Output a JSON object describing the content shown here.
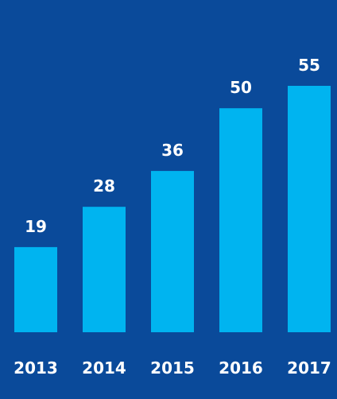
{
  "colors": {
    "background": "#0a4a9a",
    "bar": "#00b4f0",
    "text": "#ffffff"
  },
  "chart_data": {
    "type": "bar",
    "categories": [
      "2013",
      "2014",
      "2015",
      "2016",
      "2017"
    ],
    "values": [
      19,
      28,
      36,
      50,
      55
    ],
    "data_labels": [
      "19",
      "28",
      "36",
      "50",
      "55"
    ],
    "title": "",
    "xlabel": "",
    "ylabel": "",
    "ylim": [
      0,
      55
    ],
    "grid": false,
    "legend": "none"
  }
}
